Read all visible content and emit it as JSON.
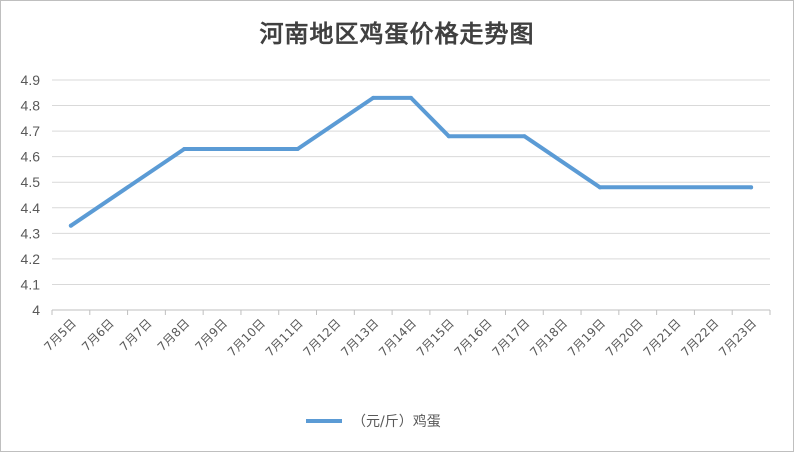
{
  "chart_data": {
    "type": "line",
    "title": "河南地区鸡蛋价格走势图",
    "xlabel": "",
    "ylabel": "",
    "categories": [
      "7月5日",
      "7月6日",
      "7月7日",
      "7月8日",
      "7月9日",
      "7月10日",
      "7月11日",
      "7月12日",
      "7月13日",
      "7月14日",
      "7月15日",
      "7月16日",
      "7月17日",
      "7月18日",
      "7月19日",
      "7月20日",
      "7月21日",
      "7月22日",
      "7月23日"
    ],
    "series": [
      {
        "name": "（元/斤）鸡蛋",
        "color": "#5b9bd5",
        "values": [
          4.33,
          null,
          null,
          4.63,
          null,
          null,
          4.63,
          null,
          4.83,
          4.83,
          4.68,
          null,
          4.68,
          null,
          4.48,
          null,
          null,
          null,
          4.48
        ]
      }
    ],
    "ylim": [
      4,
      4.9
    ],
    "yticks": [
      "4",
      "4.1",
      "4.2",
      "4.3",
      "4.4",
      "4.5",
      "4.6",
      "4.7",
      "4.8",
      "4.9"
    ],
    "grid": true,
    "legend_position": "bottom"
  }
}
